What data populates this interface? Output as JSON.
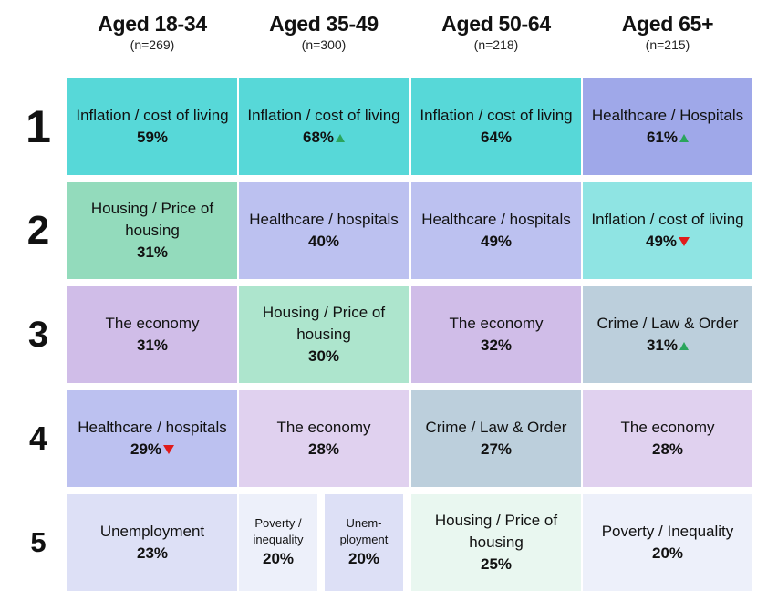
{
  "chart_data": {
    "type": "table",
    "title": "",
    "columns": [
      {
        "title": "Aged 18-34",
        "n": "(n=269)"
      },
      {
        "title": "Aged 35-49",
        "n": "(n=300)"
      },
      {
        "title": "Aged 50-64",
        "n": "(n=218)"
      },
      {
        "title": "Aged 65+",
        "n": "(n=215)"
      }
    ],
    "ranks": [
      "1",
      "2",
      "3",
      "4",
      "5"
    ],
    "cells": [
      [
        {
          "label": "Inflation / cost of living",
          "value": 59,
          "pct": "59%",
          "trend": "",
          "color": "#57d8d8"
        },
        {
          "label": "Inflation / cost of living",
          "value": 68,
          "pct": "68%",
          "trend": "up",
          "color": "#57d8d8"
        },
        {
          "label": "Inflation / cost of living",
          "value": 64,
          "pct": "64%",
          "trend": "",
          "color": "#57d8d8"
        },
        {
          "label": "Healthcare / Hospitals",
          "value": 61,
          "pct": "61%",
          "trend": "up",
          "color": "#9fa8e9"
        }
      ],
      [
        {
          "label": "Housing / Price of housing",
          "value": 31,
          "pct": "31%",
          "trend": "",
          "color": "#93dbbc"
        },
        {
          "label": "Healthcare / hospitals",
          "value": 40,
          "pct": "40%",
          "trend": "",
          "color": "#bcc1f0"
        },
        {
          "label": "Healthcare / hospitals",
          "value": 49,
          "pct": "49%",
          "trend": "",
          "color": "#bcc1f0"
        },
        {
          "label": "Inflation / cost of living",
          "value": 49,
          "pct": "49%",
          "trend": "down",
          "color": "#8fe4e3"
        }
      ],
      [
        {
          "label": "The economy",
          "value": 31,
          "pct": "31%",
          "trend": "",
          "color": "#d0bde8"
        },
        {
          "label": "Housing / Price of housing",
          "value": 30,
          "pct": "30%",
          "trend": "",
          "color": "#ade5cd"
        },
        {
          "label": "The economy",
          "value": 32,
          "pct": "32%",
          "trend": "",
          "color": "#d0bde8"
        },
        {
          "label": "Crime / Law & Order",
          "value": 31,
          "pct": "31%",
          "trend": "up",
          "color": "#bccfdc"
        }
      ],
      [
        {
          "label": "Healthcare / hospitals",
          "value": 29,
          "pct": "29%",
          "trend": "down",
          "color": "#bcc1f0"
        },
        {
          "label": "The economy",
          "value": 28,
          "pct": "28%",
          "trend": "",
          "color": "#e0d1ef"
        },
        {
          "label": "Crime / Law & Order",
          "value": 27,
          "pct": "27%",
          "trend": "",
          "color": "#bccfdc"
        },
        {
          "label": "The economy",
          "value": 28,
          "pct": "28%",
          "trend": "",
          "color": "#e0d1ef"
        }
      ],
      [
        {
          "label": "Unemployment",
          "value": 23,
          "pct": "23%",
          "trend": "",
          "color": "#dde0f6"
        },
        [
          {
            "label": "Poverty / inequality",
            "value": 20,
            "pct": "20%",
            "trend": "",
            "color": "#edf0fa"
          },
          {
            "label": "Unem-ployment",
            "value": 20,
            "pct": "20%",
            "trend": "",
            "color": "#dde0f6"
          }
        ],
        {
          "label": "Housing / Price of housing",
          "value": 25,
          "pct": "25%",
          "trend": "",
          "color": "#e9f7f0"
        },
        {
          "label": "Poverty / Inequality",
          "value": 20,
          "pct": "20%",
          "trend": "",
          "color": "#edf0fa"
        }
      ]
    ]
  }
}
